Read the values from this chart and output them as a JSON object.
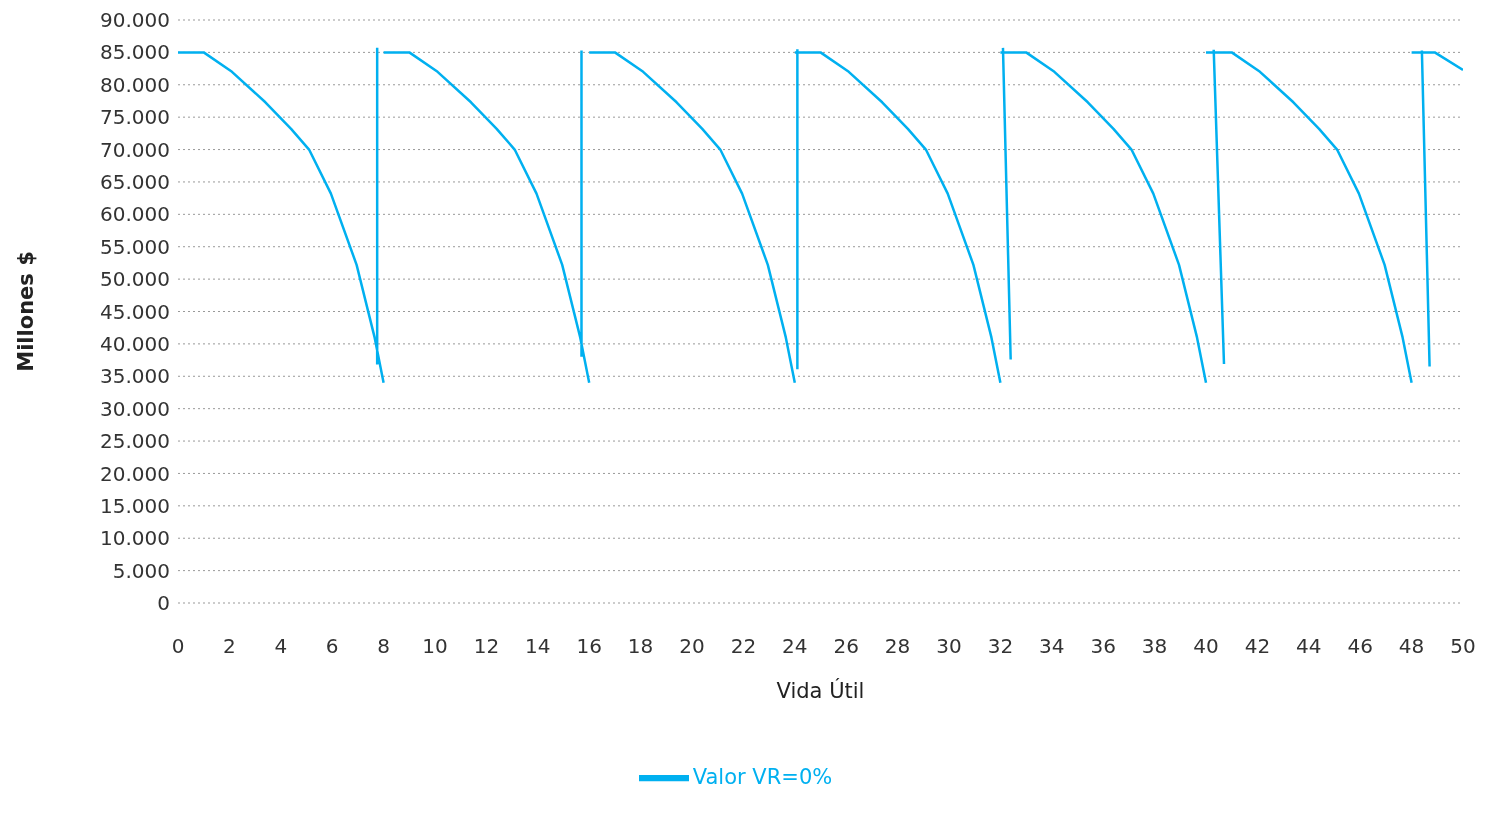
{
  "chart_data": {
    "type": "line",
    "xlabel": "Vida Útil",
    "ylabel": "Millones $",
    "xlim": [
      0,
      50
    ],
    "xticks": [
      0,
      2,
      4,
      6,
      8,
      10,
      12,
      14,
      16,
      18,
      20,
      22,
      24,
      26,
      28,
      30,
      32,
      34,
      36,
      38,
      40,
      42,
      44,
      46,
      48,
      50
    ],
    "ylim": [
      0,
      90000
    ],
    "yticks": [
      {
        "value": 0,
        "label": "0"
      },
      {
        "value": 5000,
        "label": "5.000"
      },
      {
        "value": 10000,
        "label": "10.000"
      },
      {
        "value": 15000,
        "label": "15.000"
      },
      {
        "value": 20000,
        "label": "20.000"
      },
      {
        "value": 25000,
        "label": "25.000"
      },
      {
        "value": 30000,
        "label": "30.000"
      },
      {
        "value": 35000,
        "label": "35.000"
      },
      {
        "value": 40000,
        "label": "40.000"
      },
      {
        "value": 45000,
        "label": "45.000"
      },
      {
        "value": 50000,
        "label": "50.000"
      },
      {
        "value": 55000,
        "label": "55.000"
      },
      {
        "value": 60000,
        "label": "60.000"
      },
      {
        "value": 65000,
        "label": "65.000"
      },
      {
        "value": 70000,
        "label": "70.000"
      },
      {
        "value": 75000,
        "label": "75.000"
      },
      {
        "value": 80000,
        "label": "80.000"
      },
      {
        "value": 85000,
        "label": "85.000"
      },
      {
        "value": 90000,
        "label": "90.000"
      }
    ],
    "grid": "y",
    "legend": "bottom",
    "marker": "none",
    "line_style": "solid",
    "series": [
      {
        "name": "Valor VR=0%",
        "color": "#00b0f0",
        "x": [
          0,
          1,
          2.1,
          3.4,
          4.4,
          5.1,
          5.95,
          6.95,
          7.65,
          8.0,
          null,
          7.75,
          7.75,
          null,
          8,
          9,
          10.1,
          11.4,
          12.4,
          13.1,
          13.95,
          14.95,
          15.65,
          16.0,
          null,
          15.7,
          15.7,
          null,
          16,
          17,
          18.1,
          19.4,
          20.4,
          21.1,
          21.95,
          22.95,
          23.65,
          24.0,
          null,
          24.1,
          24.1,
          null,
          24,
          25,
          26.1,
          27.4,
          28.4,
          29.1,
          29.95,
          30.95,
          31.65,
          32.0,
          null,
          32.4,
          32.1,
          null,
          32,
          33,
          34.1,
          35.4,
          36.4,
          37.1,
          37.95,
          38.95,
          39.65,
          40.0,
          null,
          40.7,
          40.3,
          null,
          40,
          41,
          42.1,
          43.4,
          44.4,
          45.1,
          45.95,
          46.95,
          47.65,
          48.0,
          null,
          48.7,
          48.4,
          null,
          48,
          48.9,
          50
        ],
        "values": [
          85000,
          85000,
          82000,
          77300,
          73200,
          70000,
          63200,
          52200,
          41000,
          34000,
          null,
          36800,
          85700,
          null,
          85000,
          85000,
          82000,
          77300,
          73200,
          70000,
          63200,
          52200,
          41000,
          34000,
          null,
          38000,
          85300,
          null,
          85000,
          85000,
          82000,
          77300,
          73200,
          70000,
          63200,
          52200,
          41000,
          34000,
          null,
          36100,
          85500,
          null,
          85000,
          85000,
          82000,
          77300,
          73200,
          70000,
          63200,
          52200,
          41000,
          34000,
          null,
          37600,
          85700,
          null,
          85000,
          85000,
          82000,
          77300,
          73200,
          70000,
          63200,
          52200,
          41000,
          34000,
          null,
          36900,
          85400,
          null,
          85000,
          85000,
          82000,
          77300,
          73200,
          70000,
          63200,
          52200,
          41000,
          34000,
          null,
          36500,
          85300,
          null,
          85000,
          85000,
          82300
        ]
      }
    ]
  }
}
